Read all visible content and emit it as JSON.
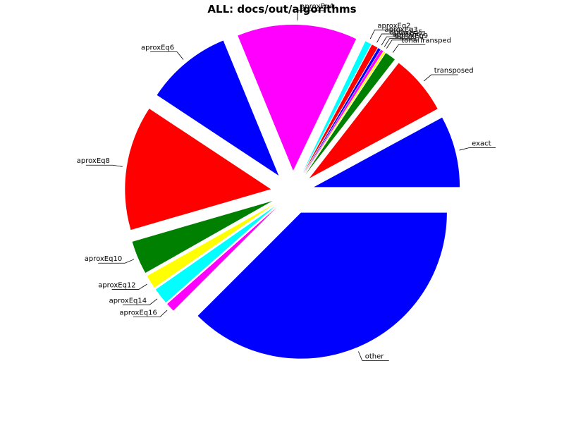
{
  "chart_data": {
    "type": "pie",
    "title": "ALL: docs/out/algorithms",
    "start_angle_deg": 0,
    "direction": "clockwise",
    "slices": [
      {
        "label": "other",
        "percent": 37.5,
        "color": "#0000ff"
      },
      {
        "label": "aproxEq16",
        "percent": 1.0,
        "color": "#ff00ff"
      },
      {
        "label": "aproxEq14",
        "percent": 1.8,
        "color": "#00ffff"
      },
      {
        "label": "aproxEq12",
        "percent": 1.5,
        "color": "#ffff00"
      },
      {
        "label": "aproxEq10",
        "percent": 3.7,
        "color": "#008000"
      },
      {
        "label": "aproxEq8",
        "percent": 13.8,
        "color": "#ff0000"
      },
      {
        "label": "aproxEq6",
        "percent": 9.5,
        "color": "#0000ff"
      },
      {
        "label": "aproxEq4",
        "percent": 13.3,
        "color": "#ff00ff"
      },
      {
        "label": "aproxEq2",
        "percent": 0.7,
        "color": "#00ffff"
      },
      {
        "label": "aproxEq3",
        "percent": 0.7,
        "color": "#ff0000"
      },
      {
        "label": "aproxEq5",
        "percent": 0.3,
        "color": "#0000ff"
      },
      {
        "label": "aproxEq7",
        "percent": 0.3,
        "color": "#ff00ff"
      },
      {
        "label": "aproxEq9",
        "percent": 0.2,
        "color": "#ffff00"
      },
      {
        "label": "tonalTransped",
        "percent": 1.2,
        "color": "#008000"
      },
      {
        "label": "transposed",
        "percent": 6.6,
        "color": "#ff0000"
      },
      {
        "label": "exact",
        "percent": 7.9,
        "color": "#0000ff"
      }
    ]
  }
}
